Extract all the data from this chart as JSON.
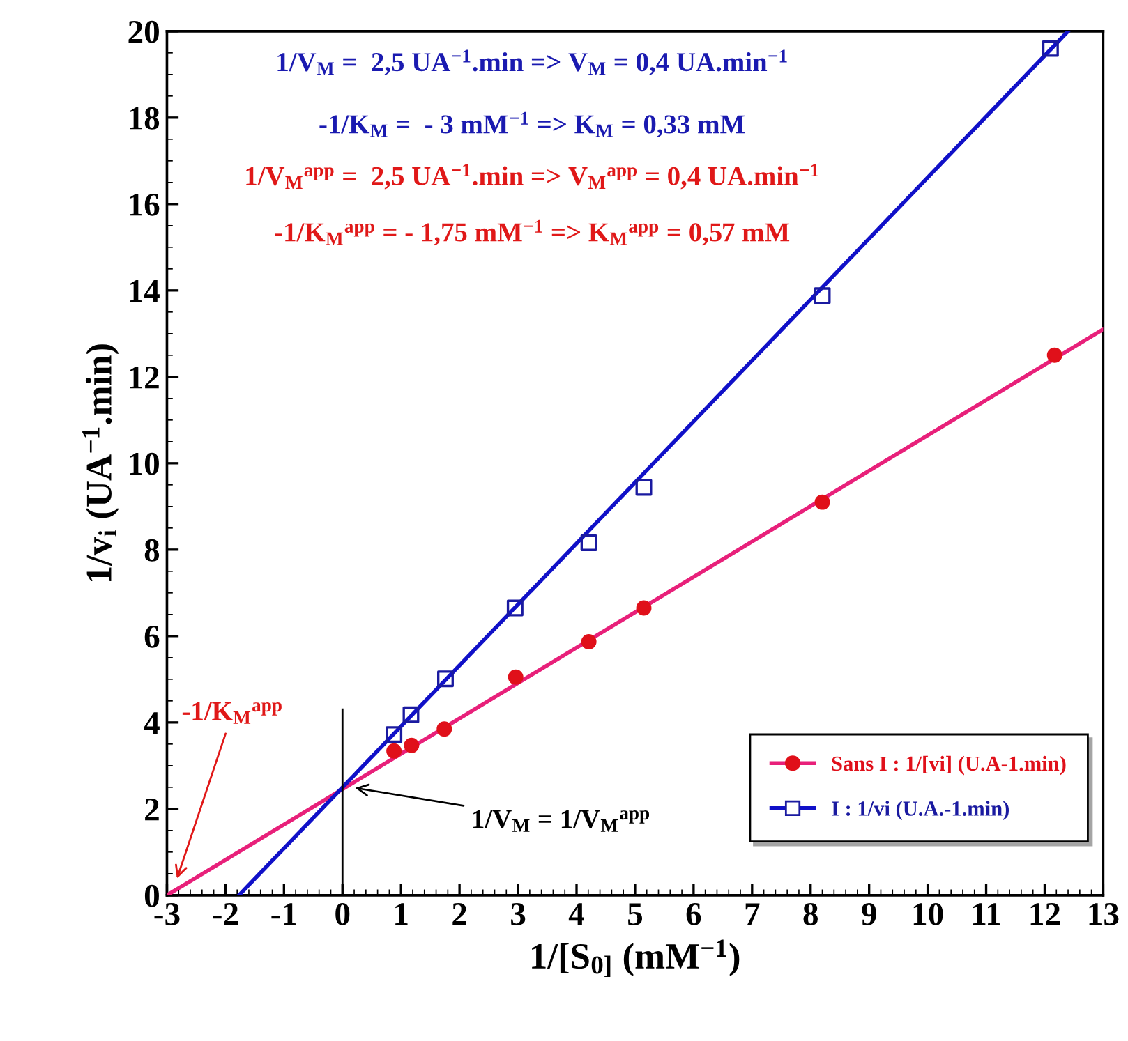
{
  "chart_data": {
    "type": "scatter",
    "xlabel": "1/[S$_{0]}$ (mM$^{−1}$)",
    "ylabel": "1/v$_{i}$ (UA$^{−1}$.min)",
    "xlim": [
      -3,
      13
    ],
    "xticks": [
      -3,
      -2,
      -1,
      0,
      1,
      2,
      3,
      4,
      5,
      6,
      7,
      8,
      9,
      10,
      11,
      12,
      13
    ],
    "ylim": [
      0,
      20
    ],
    "yticks": [
      0,
      2,
      4,
      6,
      8,
      10,
      12,
      14,
      16,
      18,
      20
    ],
    "grid": false,
    "legend": "bottom right",
    "series": [
      {
        "name": "Sans I : 1/[vi] (U.A-1.min)",
        "color": "#e0101a",
        "marker": "circle",
        "x": [
          0.88,
          1.18,
          1.74,
          2.96,
          4.21,
          5.15,
          8.2,
          12.17
        ],
        "values": [
          3.34,
          3.47,
          3.85,
          5.05,
          5.87,
          6.65,
          9.1,
          12.5
        ]
      },
      {
        "name": "I : 1/vi (U.A.-1.min)",
        "color": "#1a1aa0",
        "marker": "square",
        "x": [
          0.88,
          1.17,
          1.76,
          2.95,
          4.21,
          5.15,
          8.2,
          12.1
        ],
        "values": [
          3.72,
          4.18,
          5.01,
          6.65,
          8.16,
          9.44,
          13.88,
          19.6
        ]
      },
      {
        "type": "line",
        "color": "#e8207a",
        "x": [
          -3,
          13
        ],
        "values": [
          0,
          13.1
        ]
      },
      {
        "type": "line",
        "color": "#1010c8",
        "x": [
          -1.77,
          12.4
        ],
        "values": [
          0,
          20
        ]
      },
      {
        "type": "line",
        "color": "#000000",
        "x": [
          0,
          0
        ],
        "values": [
          0,
          4.3
        ]
      }
    ],
    "annotations": [
      "1/V$_{M}$ =  2,5 UA$^{−1}$.min => V$_{M}$ = 0,4 UA.min$^{−1}$",
      "-1/K$_{M}$ =  - 3 mM$^{−1}$ => K$_{M}$ = 0,33 mM",
      "1/V$_{M}$$^{app}$ =  2,5 UA$^{−1}$.min => V$_{M}$$^{app}$ = 0,4 UA.min$^{−1}$",
      "-1/K$_{M}$$^{app}$ = - 1,75 mM$^{−1}$ => K$_{M}$$^{app}$ = 0,57 mM",
      {
        "text": "-1/K$_{M}$$^{app}$",
        "x": -2.85,
        "y": 0.3
      },
      {
        "text": "1/V$_{M}$ = 1/V$_{M}$$^{app}$",
        "x": 0.15,
        "y": 2.5
      }
    ]
  }
}
